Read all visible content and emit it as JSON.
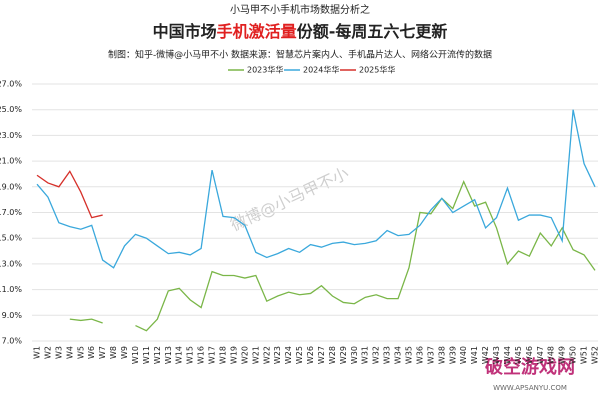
{
  "chart_data": {
    "type": "line",
    "supertitle": "小马甲不小手机市场数据分析之",
    "title_parts": [
      "中国市场",
      "手机激活量",
      "份额-每周五六七更新"
    ],
    "subtitle": "制图：知乎-微博@小马甲不小   数据来源：智慧芯片案内人、手机晶片达人、网络公开流传的数据",
    "watermark": "微博@小马甲不小",
    "site_name": "破空游戏网",
    "site_url": "WWW.APSANYU.COM",
    "categories": [
      "W1",
      "W2",
      "W3",
      "W4",
      "W5",
      "W6",
      "W7",
      "W8",
      "W9",
      "W10",
      "W11",
      "W12",
      "W13",
      "W14",
      "W15",
      "W16",
      "W17",
      "W18",
      "W19",
      "W20",
      "W21",
      "W22",
      "W23",
      "W24",
      "W25",
      "W26",
      "W27",
      "W28",
      "W29",
      "W30",
      "W31",
      "W32",
      "W33",
      "W34",
      "W35",
      "W36",
      "W37",
      "W38",
      "W39",
      "W40",
      "W41",
      "W42",
      "W43",
      "W44",
      "W45",
      "W46",
      "W47",
      "W48",
      "W49",
      "W50",
      "W51",
      "W52"
    ],
    "series": [
      {
        "name": "2023华华",
        "color": "#7ab648",
        "values": [
          null,
          null,
          null,
          8.7,
          8.6,
          8.7,
          8.4,
          null,
          null,
          8.2,
          7.8,
          8.7,
          10.9,
          11.1,
          10.2,
          9.6,
          12.4,
          12.1,
          12.1,
          11.9,
          12.1,
          10.1,
          10.5,
          10.8,
          10.6,
          10.7,
          11.3,
          10.5,
          10.0,
          9.9,
          10.4,
          10.6,
          10.3,
          10.3,
          12.7,
          17.0,
          16.9,
          18.1,
          17.3,
          19.4,
          17.5,
          17.8,
          15.8,
          13.0,
          14.0,
          13.6,
          15.4,
          14.4,
          15.8,
          14.1,
          13.7,
          12.5
        ]
      },
      {
        "name": "2024华华",
        "color": "#3aa8dc",
        "values": [
          19.2,
          18.2,
          16.2,
          15.9,
          15.7,
          16.0,
          13.3,
          12.7,
          14.4,
          15.3,
          15.0,
          14.4,
          13.8,
          13.9,
          13.7,
          14.2,
          20.3,
          16.7,
          16.6,
          16.0,
          13.9,
          13.5,
          13.8,
          14.2,
          13.9,
          14.5,
          14.3,
          14.6,
          14.7,
          14.5,
          14.6,
          14.8,
          15.6,
          15.2,
          15.3,
          16.0,
          17.2,
          18.1,
          17.0,
          17.5,
          18.0,
          15.8,
          16.6,
          18.9,
          16.4,
          16.8,
          16.8,
          16.6,
          14.8,
          25.0,
          20.8,
          19.0
        ]
      },
      {
        "name": "2025华华",
        "color": "#d6302a",
        "values": [
          19.9,
          19.3,
          19.0,
          20.2,
          18.6,
          16.6,
          16.8,
          null,
          null,
          null,
          null,
          null,
          null,
          null,
          null,
          null,
          null,
          null,
          null,
          null,
          null,
          null,
          null,
          null,
          null,
          null,
          null,
          null,
          null,
          null,
          null,
          null,
          null,
          null,
          null,
          null,
          null,
          null,
          null,
          null,
          null,
          null,
          null,
          null,
          null,
          null,
          null,
          null,
          null,
          null,
          null,
          null
        ]
      }
    ],
    "ylim": [
      7.0,
      27.0
    ],
    "yticks": [
      {
        "value": 7.0,
        "label": "7.0%"
      },
      {
        "value": 9.0,
        "label": "9.0%"
      },
      {
        "value": 11.0,
        "label": "11.0%"
      },
      {
        "value": 13.0,
        "label": "13.0%"
      },
      {
        "value": 15.0,
        "label": "15.0%"
      },
      {
        "value": 17.0,
        "label": "17.0%"
      },
      {
        "value": 19.0,
        "label": "19.0%"
      },
      {
        "value": 21.0,
        "label": "21.0%"
      },
      {
        "value": 23.0,
        "label": "23.0%"
      },
      {
        "value": 25.0,
        "label": "25.0%"
      },
      {
        "value": 27.0,
        "label": "27.0%"
      }
    ],
    "grid": true,
    "legend": "top"
  }
}
